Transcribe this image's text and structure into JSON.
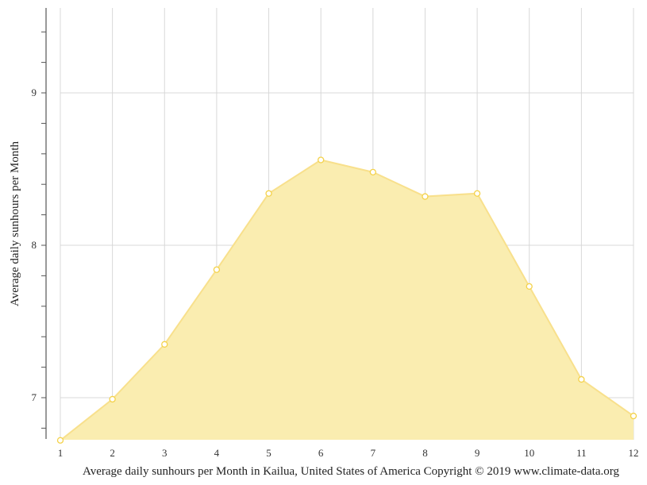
{
  "chart_data": {
    "type": "area",
    "title": "Average daily sunhours per Month in Kailua, United States of America Copyright © 2019 www.climate-data.org",
    "xlabel": "Average daily sunhours per Month in Kailua, United States of America Copyright © 2019 www.climate-data.org",
    "ylabel": "Average daily sunhours per Month",
    "categories": [
      "1",
      "2",
      "3",
      "4",
      "5",
      "6",
      "7",
      "8",
      "9",
      "10",
      "11",
      "12"
    ],
    "values": [
      6.72,
      6.99,
      7.35,
      7.84,
      8.34,
      8.56,
      8.48,
      8.32,
      8.34,
      7.73,
      7.12,
      6.88
    ],
    "series": [
      {
        "name": "Average daily sunhours",
        "values": [
          6.72,
          6.99,
          7.35,
          7.84,
          8.34,
          8.56,
          8.48,
          8.32,
          8.34,
          7.73,
          7.12,
          6.88
        ]
      }
    ],
    "yticks": [
      "7",
      "8",
      "9"
    ],
    "ylim": [
      6.72,
      9.56
    ],
    "grid": true,
    "legend": "none",
    "colors": {
      "fill": "#FAEDB0",
      "line": "#F8E08C",
      "marker_stroke": "#F4D24A",
      "marker_fill": "#FFFFFF",
      "grid": "#D8D8D8",
      "axis": "#333333"
    }
  }
}
